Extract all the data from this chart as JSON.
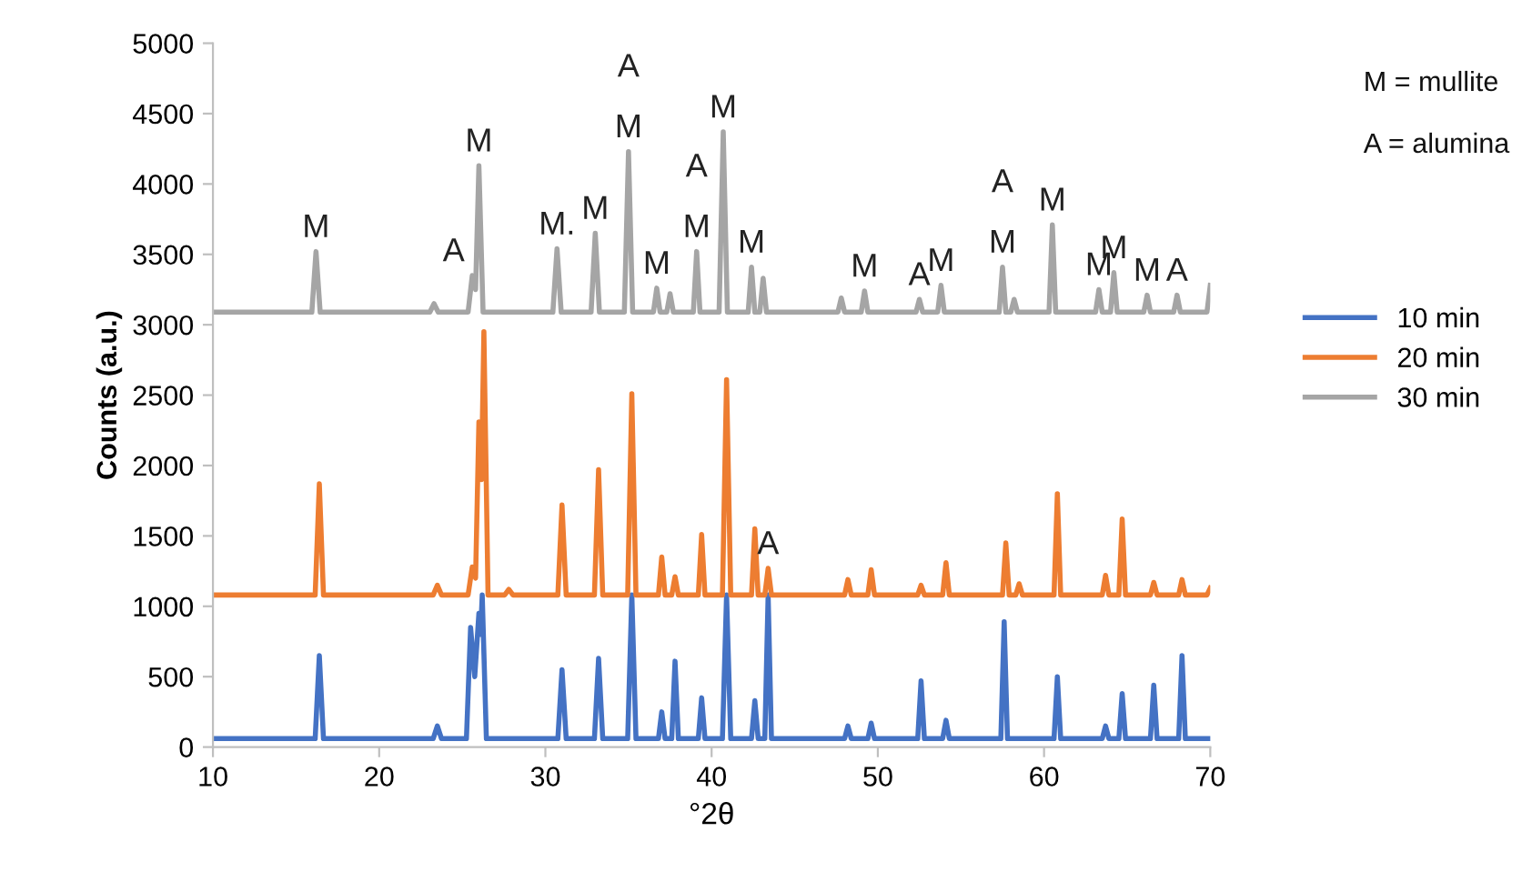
{
  "chart_data": {
    "type": "line",
    "xlabel": "°2θ",
    "ylabel": "Counts (a.u.)",
    "xlim": [
      10,
      70
    ],
    "xticks": [
      10,
      20,
      30,
      40,
      50,
      60,
      70
    ],
    "ylim": [
      0,
      5000
    ],
    "yticks": [
      0,
      500,
      1000,
      1500,
      2000,
      2500,
      3000,
      3500,
      4000,
      4500,
      5000
    ],
    "grid": false,
    "legend": "right",
    "marker": "none",
    "line_style": "solid",
    "series": [
      {
        "name": "10 min",
        "color": "#4472c4",
        "x": [
          10,
          16.15,
          16.4,
          16.65,
          23.25,
          23.5,
          23.75,
          25.25,
          25.5,
          25.75,
          26.0,
          26.1,
          26.2,
          26.45,
          30.75,
          31.0,
          31.25,
          32.95,
          33.2,
          33.45,
          34.95,
          35.2,
          35.45,
          36.8,
          37.0,
          37.2,
          37.6,
          37.8,
          38.0,
          39.2,
          39.4,
          39.6,
          40.65,
          40.9,
          41.15,
          42.4,
          42.6,
          42.8,
          43.2,
          43.4,
          43.6,
          48.0,
          48.2,
          48.4,
          49.4,
          49.6,
          49.8,
          52.4,
          52.6,
          52.8,
          53.9,
          54.1,
          54.3,
          57.4,
          57.6,
          57.8,
          60.6,
          60.8,
          61.0,
          63.5,
          63.7,
          63.9,
          64.5,
          64.7,
          64.9,
          66.4,
          66.6,
          66.8,
          68.1,
          68.3,
          68.5,
          70
        ],
        "values": [
          60,
          60,
          650,
          60,
          60,
          150,
          60,
          60,
          850,
          500,
          950,
          800,
          1080,
          60,
          60,
          550,
          60,
          60,
          630,
          60,
          60,
          1080,
          60,
          60,
          250,
          60,
          60,
          610,
          60,
          60,
          350,
          60,
          60,
          1080,
          60,
          60,
          330,
          60,
          60,
          1080,
          60,
          60,
          150,
          60,
          60,
          170,
          60,
          60,
          470,
          60,
          60,
          190,
          60,
          60,
          890,
          60,
          60,
          500,
          60,
          60,
          150,
          60,
          60,
          380,
          60,
          60,
          440,
          60,
          60,
          650,
          60,
          60
        ]
      },
      {
        "name": "20 min",
        "color": "#ed7d31",
        "x": [
          10,
          16.15,
          16.4,
          16.65,
          23.25,
          23.5,
          23.75,
          25.35,
          25.6,
          25.8,
          26.0,
          26.15,
          26.3,
          26.55,
          27.55,
          27.8,
          28.05,
          30.75,
          31.0,
          31.25,
          32.95,
          33.2,
          33.45,
          34.95,
          35.2,
          35.45,
          36.8,
          37.0,
          37.2,
          37.6,
          37.8,
          38.0,
          39.2,
          39.4,
          39.6,
          40.65,
          40.9,
          41.15,
          42.4,
          42.6,
          42.8,
          43.2,
          43.4,
          43.6,
          48.0,
          48.2,
          48.4,
          49.4,
          49.6,
          49.8,
          52.4,
          52.6,
          52.8,
          53.9,
          54.1,
          54.3,
          57.5,
          57.7,
          57.9,
          58.3,
          58.5,
          58.7,
          60.6,
          60.8,
          61.0,
          63.5,
          63.7,
          63.9,
          64.5,
          64.7,
          64.9,
          66.4,
          66.6,
          66.8,
          68.1,
          68.3,
          68.5,
          69.8,
          70
        ],
        "values": [
          1080,
          1080,
          1870,
          1080,
          1080,
          1150,
          1080,
          1080,
          1280,
          1200,
          2310,
          1900,
          2950,
          1080,
          1080,
          1120,
          1080,
          1080,
          1720,
          1080,
          1080,
          1970,
          1080,
          1080,
          2510,
          1080,
          1080,
          1350,
          1080,
          1080,
          1210,
          1080,
          1080,
          1510,
          1080,
          1080,
          2610,
          1080,
          1080,
          1550,
          1080,
          1080,
          1270,
          1080,
          1080,
          1190,
          1080,
          1080,
          1260,
          1080,
          1080,
          1150,
          1080,
          1080,
          1310,
          1080,
          1080,
          1450,
          1080,
          1080,
          1160,
          1080,
          1080,
          1800,
          1080,
          1080,
          1220,
          1080,
          1080,
          1620,
          1080,
          1080,
          1170,
          1080,
          1080,
          1190,
          1080,
          1080,
          1130
        ]
      },
      {
        "name": "30 min",
        "color": "#a5a5a5",
        "x": [
          10,
          15.95,
          16.2,
          16.45,
          23.05,
          23.3,
          23.55,
          25.35,
          25.6,
          25.8,
          26.0,
          26.25,
          30.45,
          30.7,
          30.95,
          32.75,
          33.0,
          33.25,
          34.75,
          35.0,
          35.25,
          36.5,
          36.7,
          36.9,
          37.3,
          37.5,
          37.7,
          38.9,
          39.1,
          39.3,
          40.45,
          40.7,
          40.95,
          42.2,
          42.4,
          42.6,
          42.9,
          43.1,
          43.3,
          47.6,
          47.8,
          48.0,
          49.0,
          49.2,
          49.4,
          52.3,
          52.5,
          52.7,
          53.6,
          53.8,
          54.0,
          57.3,
          57.5,
          57.7,
          58.0,
          58.2,
          58.4,
          60.3,
          60.5,
          60.7,
          63.1,
          63.3,
          63.5,
          64.0,
          64.2,
          64.4,
          66.0,
          66.2,
          66.4,
          67.8,
          68.0,
          68.2,
          69.8,
          70
        ],
        "values": [
          3090,
          3090,
          3520,
          3090,
          3090,
          3150,
          3090,
          3090,
          3350,
          3250,
          4130,
          3090,
          3090,
          3540,
          3090,
          3090,
          3650,
          3090,
          3090,
          4230,
          3090,
          3090,
          3260,
          3090,
          3090,
          3220,
          3090,
          3090,
          3520,
          3090,
          3090,
          4370,
          3090,
          3090,
          3410,
          3090,
          3090,
          3330,
          3090,
          3090,
          3190,
          3090,
          3090,
          3240,
          3090,
          3090,
          3180,
          3090,
          3090,
          3280,
          3090,
          3090,
          3410,
          3090,
          3090,
          3180,
          3090,
          3090,
          3710,
          3090,
          3090,
          3250,
          3090,
          3090,
          3370,
          3090,
          3090,
          3210,
          3090,
          3090,
          3210,
          3090,
          3090,
          3280
        ]
      }
    ],
    "annotations": [
      {
        "text": "M",
        "x": 16.2,
        "y": 3520
      },
      {
        "text": "A",
        "x": 25.6,
        "y": 3350
      },
      {
        "text": "M",
        "x": 26.0,
        "y": 4130
      },
      {
        "text": "M.",
        "x": 30.7,
        "y": 3540
      },
      {
        "text": "M",
        "x": 33.0,
        "y": 3650
      },
      {
        "text": "A",
        "x": 35.0,
        "y": 4230
      },
      {
        "text": "M",
        "x": 35.0,
        "y": 4230
      },
      {
        "text": "M",
        "x": 36.7,
        "y": 3260
      },
      {
        "text": "A",
        "x": 39.1,
        "y": 3520
      },
      {
        "text": "M",
        "x": 39.1,
        "y": 3520
      },
      {
        "text": "M",
        "x": 40.7,
        "y": 4370
      },
      {
        "text": "M",
        "x": 42.4,
        "y": 3410
      },
      {
        "text": "M",
        "x": 49.2,
        "y": 3240
      },
      {
        "text": "A",
        "x": 52.5,
        "y": 3180
      },
      {
        "text": "M",
        "x": 53.8,
        "y": 3280
      },
      {
        "text": "A",
        "x": 57.5,
        "y": 3410
      },
      {
        "text": "M",
        "x": 57.5,
        "y": 3410
      },
      {
        "text": "M",
        "x": 60.5,
        "y": 3710
      },
      {
        "text": "M",
        "x": 63.3,
        "y": 3250
      },
      {
        "text": "M",
        "x": 64.2,
        "y": 3370
      },
      {
        "text": "M",
        "x": 66.2,
        "y": 3210
      },
      {
        "text": "A",
        "x": 68.0,
        "y": 3210
      },
      {
        "text": "A",
        "x": 43.4,
        "y": 1270
      },
      "M = mullite",
      "A = alumina"
    ]
  }
}
